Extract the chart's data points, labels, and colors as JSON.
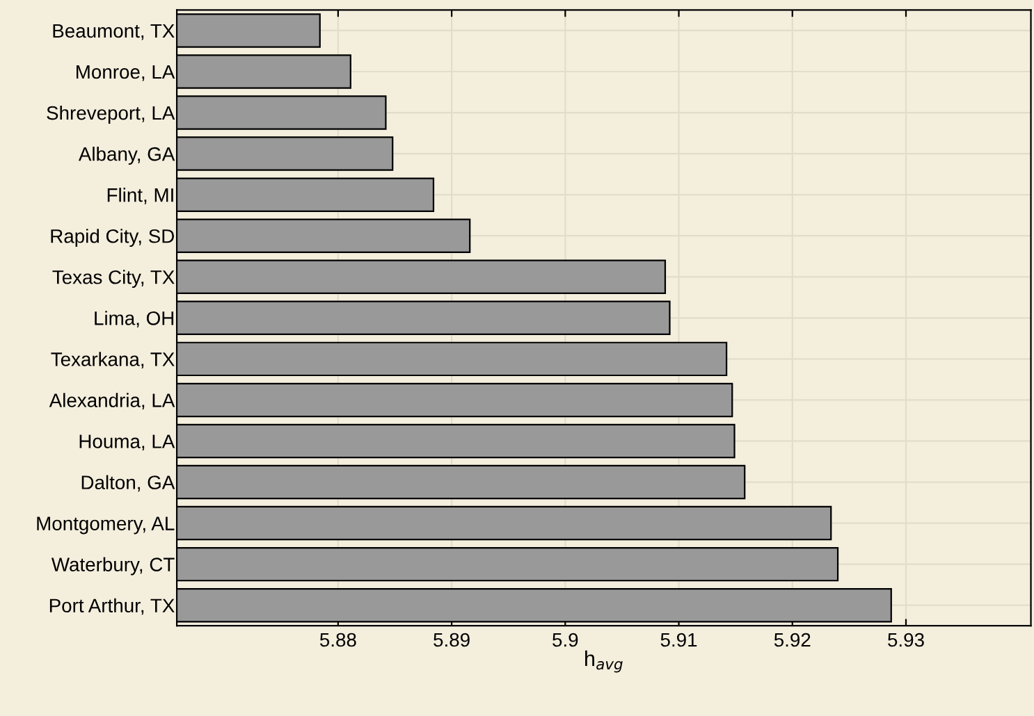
{
  "chart_data": {
    "type": "bar",
    "orientation": "horizontal",
    "xlabel": "h$_{avg}$",
    "categories": [
      "Beaumont, TX",
      "Monroe, LA",
      "Shreveport, LA",
      "Albany, GA",
      "Flint, MI",
      "Rapid City, SD",
      "Texas City, TX",
      "Lima, OH",
      "Texarkana, TX",
      "Alexandria, LA",
      "Houma, LA",
      "Dalton, GA",
      "Montgomery, AL",
      "Waterbury, CT",
      "Port Arthur, TX"
    ],
    "values": [
      5.8784,
      5.8811,
      5.8842,
      5.8848,
      5.8884,
      5.8916,
      5.9088,
      5.9092,
      5.9142,
      5.9147,
      5.9149,
      5.9158,
      5.9234,
      5.924,
      5.9287
    ],
    "color": "#999999",
    "xlim": [
      5.8658,
      5.941
    ],
    "xticks": [
      5.88,
      5.89,
      5.9,
      5.91,
      5.92,
      5.93
    ],
    "grid": true
  }
}
